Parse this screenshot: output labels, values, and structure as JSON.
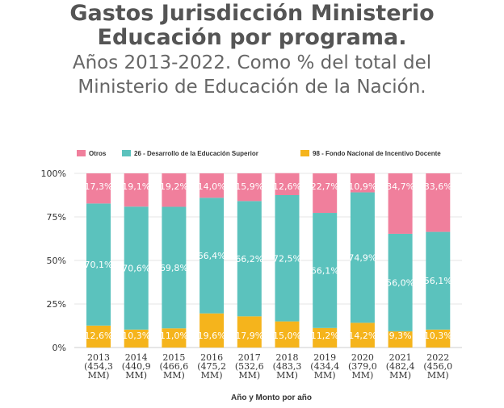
{
  "title": {
    "line1": "Gastos Jurisdicción Ministerio",
    "line2": "Educación por programa."
  },
  "subtitle": {
    "line1": "Años 2013-2022. Como % del total del",
    "line2": "Ministerio de Educación de la Nación."
  },
  "chart_data": {
    "type": "bar",
    "stacked": true,
    "categories": [
      "2013",
      "2014",
      "2015",
      "2016",
      "2017",
      "2018",
      "2019",
      "2020",
      "2021",
      "2022"
    ],
    "category_amounts": [
      "(454,3 MM)",
      "(440,9 MM)",
      "(466,6 MM)",
      "(475,2 MM)",
      "(532,6 MM)",
      "(483,3 MM)",
      "(434,4 MM)",
      "(379,0 MM)",
      "(482,4 MM)",
      "(456,0 MM)"
    ],
    "category_amount_lines": [
      [
        "(454,3",
        "MM)"
      ],
      [
        "(440,9",
        "MM)"
      ],
      [
        "(466,6",
        "MM)"
      ],
      [
        "(475,2",
        "MM)"
      ],
      [
        "(532,6",
        "MM)"
      ],
      [
        "(483,3",
        "MM)"
      ],
      [
        "(434,4",
        "MM)"
      ],
      [
        "(379,0",
        "MM)"
      ],
      [
        "(482,4",
        "MM)"
      ],
      [
        "(456,0",
        "MM)"
      ]
    ],
    "series": [
      {
        "name": "98 - Fondo Nacional de Incentivo Docente",
        "color": "#f5b41c",
        "values": [
          12.6,
          10.3,
          11.0,
          19.6,
          17.9,
          15.0,
          11.2,
          14.2,
          9.3,
          10.3
        ],
        "labels": [
          "12,6%",
          "10,3%",
          "11,0%",
          "19,6%",
          "17,9%",
          "15,0%",
          "11,2%",
          "14,2%",
          "9,3%",
          "10,3%"
        ]
      },
      {
        "name": "26 - Desarrollo de la Educación Superior",
        "color": "#5bc2bd",
        "values": [
          70.1,
          70.6,
          69.8,
          66.4,
          66.2,
          72.5,
          66.1,
          74.9,
          56.0,
          56.1
        ],
        "labels": [
          "70,1%",
          "70,6%",
          "69,8%",
          "66,4%",
          "66,2%",
          "72,5%",
          "66,1%",
          "74,9%",
          "56,0%",
          "56,1%"
        ]
      },
      {
        "name": "Otros",
        "color": "#f07f9c",
        "values": [
          17.3,
          19.1,
          19.2,
          14.0,
          15.9,
          12.6,
          22.7,
          10.9,
          34.7,
          33.6
        ],
        "labels": [
          "17,3%",
          "19,1%",
          "19,2%",
          "14,0%",
          "15,9%",
          "12,6%",
          "22,7%",
          "10,9%",
          "34,7%",
          "33,6%"
        ]
      }
    ],
    "legend": [
      "Otros",
      "26 - Desarrollo de la Educación Superior",
      "98 - Fondo Nacional de Incentivo Docente"
    ],
    "yticks": [
      "0%",
      "25%",
      "50%",
      "75%",
      "100%"
    ],
    "ylim": [
      0,
      100
    ],
    "xlabel": "Año y Monto por año",
    "ylabel": "",
    "legend_position": "top",
    "gridlines": true
  }
}
